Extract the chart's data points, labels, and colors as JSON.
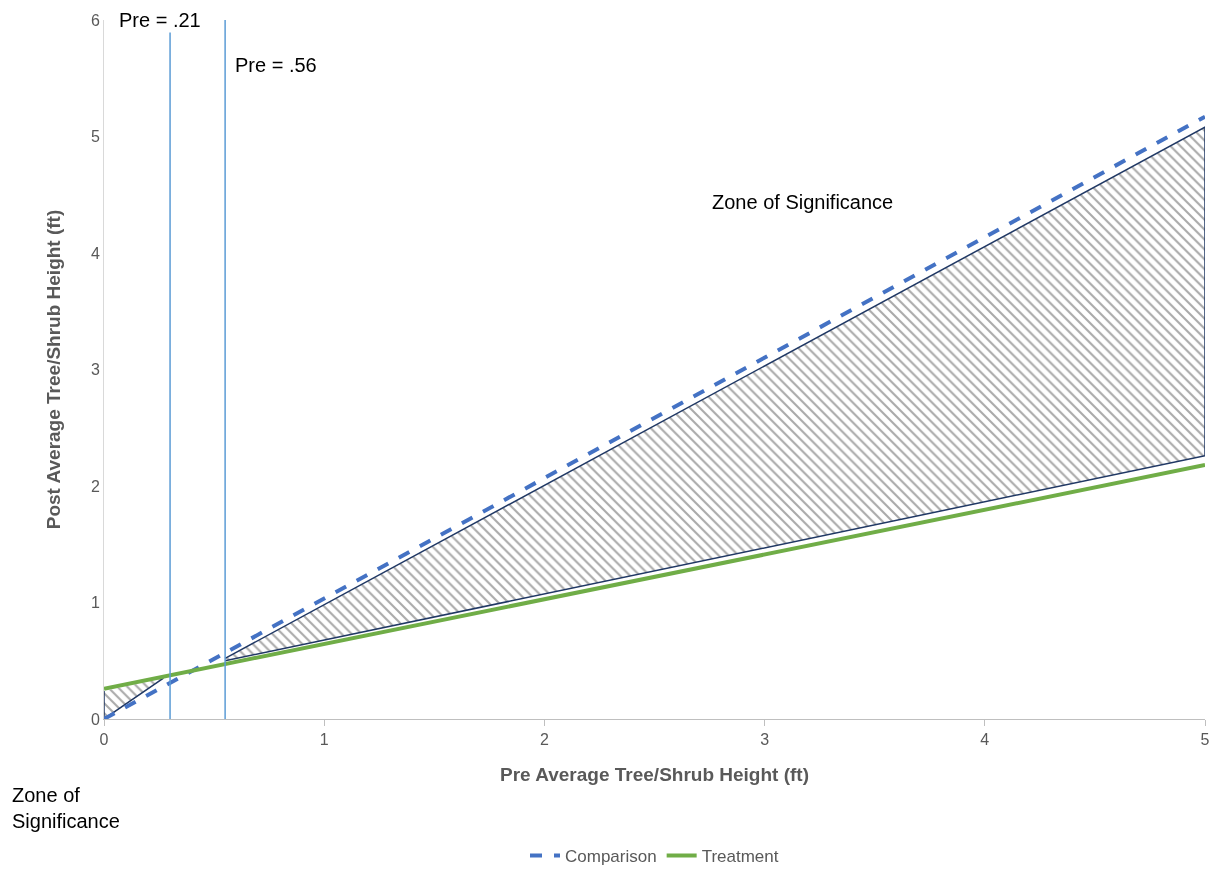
{
  "chart_data": {
    "type": "line",
    "xlabel": "Pre Average Tree/Shrub Height (ft)",
    "ylabel": "Post Average Tree/Shrub Height (ft)",
    "xlim": [
      0,
      5
    ],
    "xticks": [
      0,
      1,
      2,
      3,
      4,
      5
    ],
    "ylim": [
      0,
      6
    ],
    "yticks": [
      0,
      1,
      2,
      3,
      4,
      5,
      6
    ],
    "legend": "bottom",
    "marker": "none",
    "series": [
      {
        "name": "Comparison",
        "color": "#4472c4",
        "x": [
          0,
          5
        ],
        "values": [
          0,
          5.17
        ],
        "line_style": "dashed"
      },
      {
        "name": "Treatment",
        "color": "#70ad47",
        "x": [
          0,
          5
        ],
        "values": [
          0.26,
          2.18
        ],
        "line_style": "solid"
      },
      {
        "type": "area",
        "color": "#203864",
        "x": [
          0.55,
          5,
          5,
          0.55
        ],
        "values": [
          0.52,
          5.08,
          2.26,
          0.5
        ]
      },
      {
        "type": "area",
        "color": "#203864",
        "x": [
          0,
          0,
          0.27
        ],
        "values": [
          0.24,
          0,
          0.35
        ]
      }
    ],
    "ref_lines": [
      {
        "axis": "x",
        "value": 0.3,
        "label": "Pre = .21",
        "color": "#5b9bd5"
      },
      {
        "axis": "x",
        "value": 0.55,
        "label": "Pre = .56",
        "color": "#5b9bd5"
      }
    ],
    "annotations": [
      "Zone of Significance",
      "Zone of\nSignificance"
    ]
  }
}
